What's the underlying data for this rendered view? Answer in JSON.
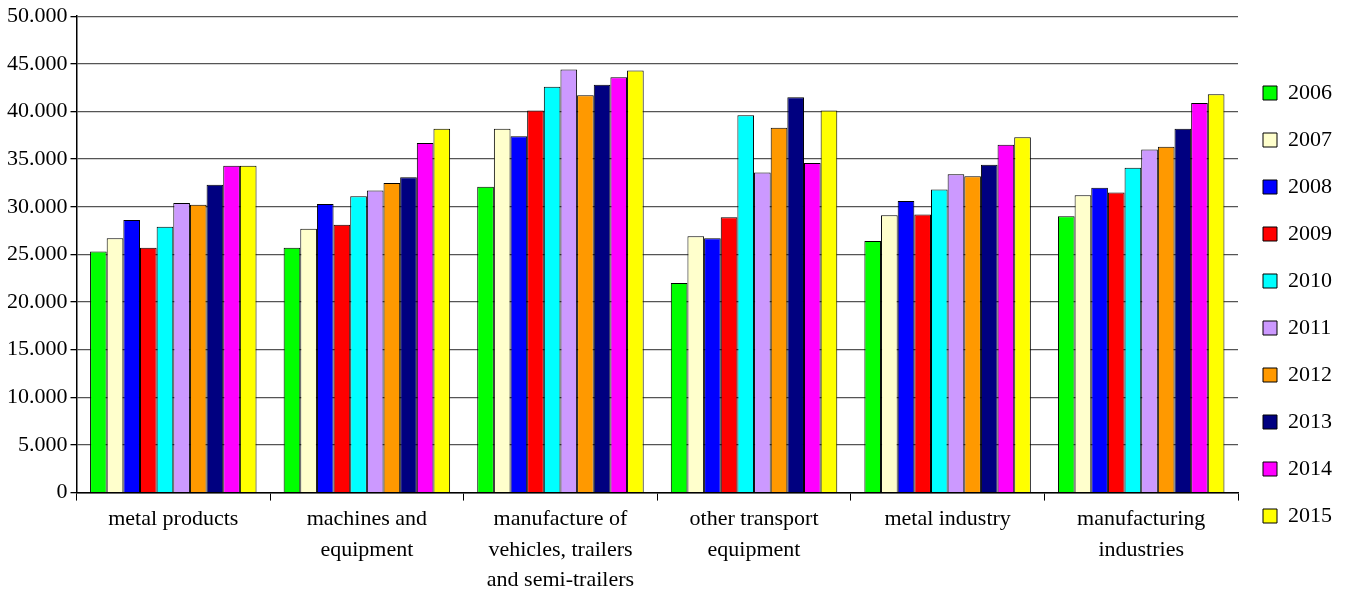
{
  "chart_data": {
    "type": "bar",
    "categories": [
      "metal products",
      "machines and equipment",
      "manufacture of vehicles, trailers and semi-trailers",
      "other transport equipment",
      "metal industry",
      "manufacturing industries"
    ],
    "series": [
      {
        "name": "2006",
        "color": "#00ff00",
        "values": [
          25300,
          25700,
          32100,
          22000,
          26400,
          29000
        ]
      },
      {
        "name": "2007",
        "color": "#ffffcc",
        "values": [
          26700,
          27700,
          38200,
          26900,
          29100,
          31200
        ]
      },
      {
        "name": "2008",
        "color": "#0000ff",
        "values": [
          28600,
          30300,
          37400,
          26700,
          30600,
          32000
        ]
      },
      {
        "name": "2009",
        "color": "#ff0000",
        "values": [
          25700,
          28100,
          40100,
          28900,
          29200,
          31500
        ]
      },
      {
        "name": "2010",
        "color": "#00ffff",
        "values": [
          27900,
          31100,
          42600,
          39600,
          31800,
          34100
        ]
      },
      {
        "name": "2011",
        "color": "#cc99ff",
        "values": [
          30400,
          31700,
          44400,
          33600,
          33400,
          36000
        ]
      },
      {
        "name": "2012",
        "color": "#ff9900",
        "values": [
          30200,
          32500,
          41700,
          38300,
          33200,
          36300
        ]
      },
      {
        "name": "2013",
        "color": "#000080",
        "values": [
          32300,
          33100,
          42800,
          41500,
          34400,
          38200
        ]
      },
      {
        "name": "2014",
        "color": "#ff00ff",
        "values": [
          34300,
          36700,
          43600,
          34600,
          36500,
          40900
        ]
      },
      {
        "name": "2015",
        "color": "#ffff00",
        "values": [
          34300,
          38200,
          44300,
          40100,
          37300,
          41800
        ]
      }
    ],
    "ylim": [
      0,
      50000
    ],
    "yticks": [
      {
        "value": 0,
        "label": "0"
      },
      {
        "value": 5000,
        "label": "5.000"
      },
      {
        "value": 10000,
        "label": "10.000"
      },
      {
        "value": 15000,
        "label": "15.000"
      },
      {
        "value": 20000,
        "label": "20.000"
      },
      {
        "value": 25000,
        "label": "25.000"
      },
      {
        "value": 30000,
        "label": "30.000"
      },
      {
        "value": 35000,
        "label": "35.000"
      },
      {
        "value": 40000,
        "label": "40.000"
      },
      {
        "value": 45000,
        "label": "45.000"
      },
      {
        "value": 50000,
        "label": "50.000"
      }
    ],
    "grid": "y",
    "legend": "right"
  }
}
